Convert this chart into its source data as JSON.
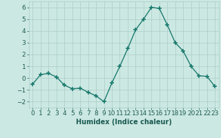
{
  "x": [
    0,
    1,
    2,
    3,
    4,
    5,
    6,
    7,
    8,
    9,
    10,
    11,
    12,
    13,
    14,
    15,
    16,
    17,
    18,
    19,
    20,
    21,
    22,
    23
  ],
  "y": [
    -0.5,
    0.3,
    0.4,
    0.1,
    -0.6,
    -0.9,
    -0.85,
    -1.2,
    -1.5,
    -2.0,
    -0.4,
    1.0,
    2.5,
    4.1,
    5.0,
    6.0,
    5.9,
    4.5,
    3.0,
    2.3,
    1.0,
    0.2,
    0.15,
    -0.7
  ],
  "line_color": "#1a7a6e",
  "marker": "+",
  "marker_size": 4,
  "linewidth": 1.0,
  "xlabel": "Humidex (Indice chaleur)",
  "xlim": [
    -0.5,
    23.5
  ],
  "ylim": [
    -2.5,
    6.5
  ],
  "yticks": [
    -2,
    -1,
    0,
    1,
    2,
    3,
    4,
    5,
    6
  ],
  "xtick_labels": [
    "0",
    "1",
    "2",
    "3",
    "4",
    "5",
    "6",
    "7",
    "8",
    "9",
    "10",
    "11",
    "12",
    "13",
    "14",
    "15",
    "16",
    "17",
    "18",
    "19",
    "20",
    "21",
    "22",
    "23"
  ],
  "bg_color": "#cce8e2",
  "grid_color": "#aaccc6",
  "grid_linewidth": 0.5,
  "xlabel_fontsize": 7,
  "tick_fontsize": 6.5
}
